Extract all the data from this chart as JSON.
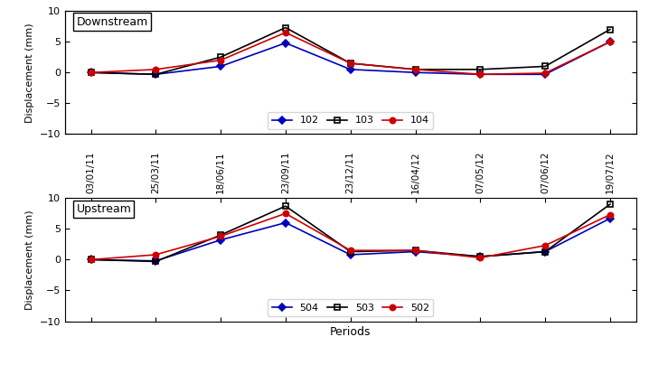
{
  "x_labels": [
    "03/01/11",
    "25/03/11",
    "18/06/11",
    "23/09/11",
    "23/12/11",
    "16/04/12",
    "07/05/12",
    "07/06/12",
    "19/07/12"
  ],
  "downstream": {
    "102": [
      0.0,
      -0.3,
      1.0,
      4.8,
      0.5,
      0.0,
      -0.3,
      -0.3,
      5.0
    ],
    "103": [
      0.0,
      -0.3,
      2.5,
      7.3,
      1.5,
      0.5,
      0.5,
      1.0,
      7.0
    ],
    "104": [
      0.0,
      0.5,
      2.0,
      6.5,
      1.5,
      0.5,
      -0.3,
      -0.1,
      5.0
    ]
  },
  "upstream": {
    "504": [
      0.0,
      -0.2,
      3.2,
      6.0,
      0.8,
      1.3,
      0.5,
      1.3,
      6.7
    ],
    "503": [
      0.0,
      -0.3,
      4.0,
      8.7,
      1.3,
      1.5,
      0.5,
      1.3,
      9.0
    ],
    "502": [
      0.0,
      0.8,
      3.8,
      7.5,
      1.5,
      1.5,
      0.3,
      2.3,
      7.3
    ]
  },
  "colors": {
    "102": "#0000bb",
    "103": "#000000",
    "104": "#cc0000",
    "504": "#0000bb",
    "503": "#000000",
    "502": "#cc0000"
  },
  "markers": {
    "102": "D",
    "103": "s",
    "104": "o",
    "504": "D",
    "503": "s",
    "502": "o"
  },
  "ylim": [
    -10,
    10
  ],
  "yticks": [
    -10,
    -5,
    0,
    5,
    10
  ],
  "ylabel": "Displacement (mm)",
  "xlabel": "Periods",
  "downstream_label": "Downstream",
  "upstream_label": "Upstream"
}
